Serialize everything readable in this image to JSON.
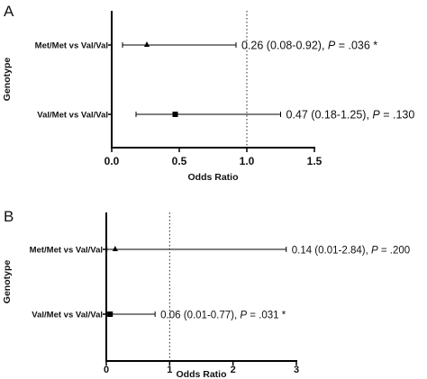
{
  "ylabel": "Genotype",
  "chart_data": [
    {
      "panel": "A",
      "type": "forest",
      "xlabel": "Odds Ratio",
      "xlim": [
        0,
        1.5
      ],
      "xticks": [
        "0.0",
        "0.5",
        "1.0",
        "1.5"
      ],
      "reference_line": 1.0,
      "rows": [
        {
          "label": "Met/Met vs Val/Val",
          "or": 0.26,
          "lo": 0.08,
          "hi": 0.92,
          "marker": "triangle",
          "annot_main": "0.26 (0.08-0.92), ",
          "annot_p": "P",
          "annot_tail": " = .036 *"
        },
        {
          "label": "Val/Met vs Val/Val",
          "or": 0.47,
          "lo": 0.18,
          "hi": 1.25,
          "marker": "square",
          "annot_main": "0.47 (0.18-1.25), ",
          "annot_p": "P",
          "annot_tail": " = .130"
        }
      ]
    },
    {
      "panel": "B",
      "type": "forest",
      "xlabel": "Odds Ratio",
      "xlim": [
        0,
        3
      ],
      "xticks": [
        "0",
        "1",
        "2",
        "3"
      ],
      "reference_line": 1,
      "rows": [
        {
          "label": "Met/Met vs Val/Val",
          "or": 0.14,
          "lo": 0.01,
          "hi": 2.84,
          "marker": "triangle",
          "annot_main": "0.14 (0.01-2.84), ",
          "annot_p": "P",
          "annot_tail": " = .200"
        },
        {
          "label": "Val/Met vs Val/Val",
          "or": 0.06,
          "lo": 0.01,
          "hi": 0.77,
          "marker": "square",
          "annot_main": "0.06 (0.01-0.77), ",
          "annot_p": "P",
          "annot_tail": " = .031 *"
        }
      ]
    }
  ]
}
